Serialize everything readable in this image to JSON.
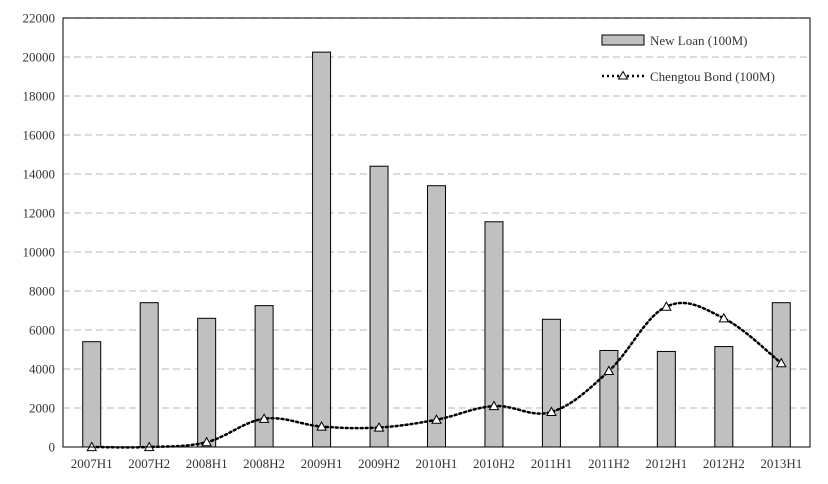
{
  "chart_data": {
    "type": "bar",
    "title": "",
    "xlabel": "",
    "ylabel": "",
    "ylim": [
      0,
      22000
    ],
    "yticks": [
      0,
      2000,
      4000,
      6000,
      8000,
      10000,
      12000,
      14000,
      16000,
      18000,
      20000,
      22000
    ],
    "grid": "horizontal dashed",
    "legend_position": "top-right",
    "categories": [
      "2007H1",
      "2007H2",
      "2008H1",
      "2008H2",
      "2009H1",
      "2009H2",
      "2010H1",
      "2010H2",
      "2011H1",
      "2011H2",
      "2012H1",
      "2012H2",
      "2013H1"
    ],
    "series": [
      {
        "name": "New Loan (100M)",
        "type": "bar",
        "color": "#c0c0c0",
        "values": [
          5400,
          7400,
          6600,
          7250,
          20250,
          14400,
          13400,
          11550,
          6550,
          4950,
          4900,
          5150,
          7400
        ]
      },
      {
        "name": "Chengtou Bond (100M)",
        "type": "line",
        "line_style": "dotted",
        "marker": "triangle",
        "color": "#000000",
        "values": [
          0,
          0,
          250,
          1450,
          1050,
          1000,
          1400,
          2100,
          1800,
          3900,
          7200,
          6600,
          4300
        ]
      }
    ]
  }
}
